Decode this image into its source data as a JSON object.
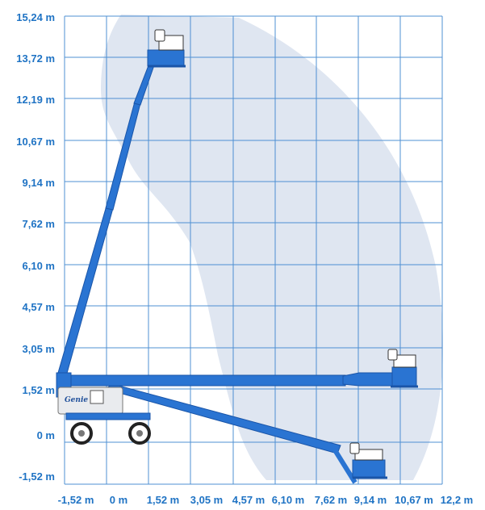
{
  "chart_data": {
    "type": "diagram",
    "y_ticks": [
      "15,24 m",
      "13,72 m",
      "12,19 m",
      "10,67 m",
      "9,14 m",
      "7,62 m",
      "6,10 m",
      "4,57 m",
      "3,05 m",
      "1,52 m",
      "0 m",
      "-1,52 m"
    ],
    "x_ticks": [
      "-1,52 m",
      "0 m",
      "1,52 m",
      "3,05 m",
      "4,57 m",
      "6,10 m",
      "7,62 m",
      "9,14 m",
      "10,67 m",
      "12,2 m"
    ],
    "grid": true,
    "logo_text": "Genie"
  },
  "colors": {
    "grid": "#3d86cf",
    "tick_text": "#1f73c4",
    "envelope": "#dfe6f1",
    "boom": "#2a74d2",
    "boom_dark": "#1a55a8",
    "chassis": "#e9ebee"
  }
}
